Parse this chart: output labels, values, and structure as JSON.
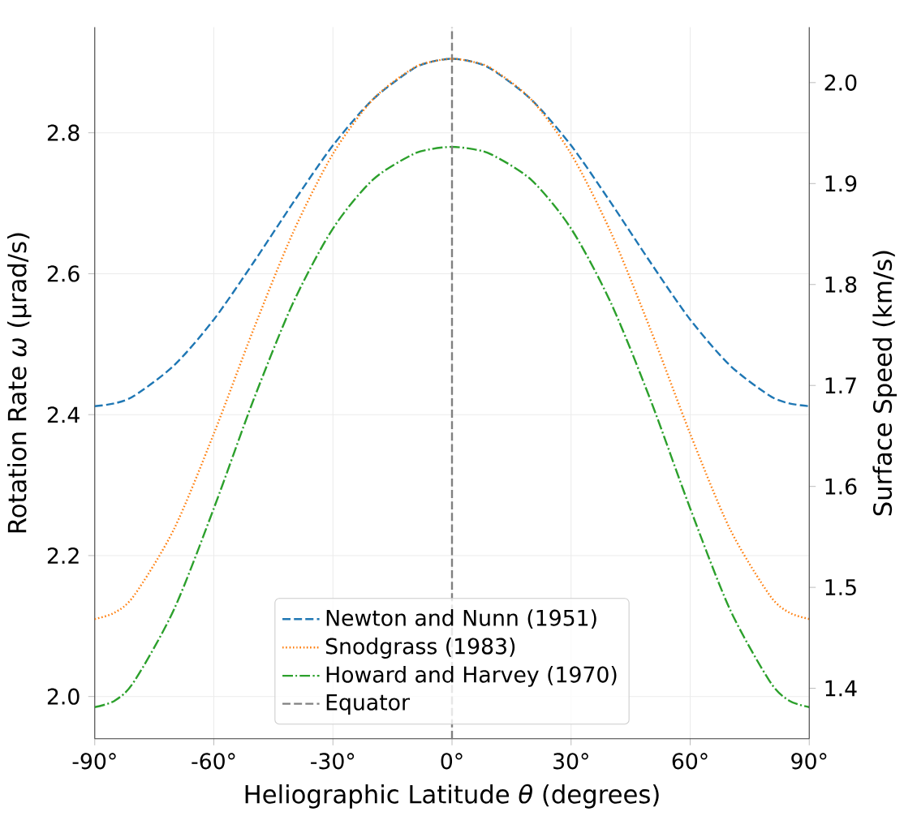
{
  "chart_data": {
    "type": "line",
    "xlabel": "Heliographic Latitude *θ* (degrees)",
    "ylabel": "Rotation Rate *ω* (μrad/s)",
    "y2label": "Surface Speed (km/s)",
    "x": [
      -90,
      -85,
      -80,
      -70,
      -60,
      -50,
      -40,
      -30,
      -20,
      -10,
      -5,
      0,
      5,
      10,
      20,
      30,
      40,
      50,
      60,
      70,
      80,
      85,
      90
    ],
    "series": [
      {
        "name": "Newton and Nunn (1951)",
        "color": "#1f77b4",
        "line_style": "dashed",
        "values": [
          2.412,
          2.416,
          2.427,
          2.47,
          2.535,
          2.616,
          2.701,
          2.782,
          2.847,
          2.89,
          2.901,
          2.905,
          2.901,
          2.89,
          2.847,
          2.782,
          2.701,
          2.616,
          2.535,
          2.47,
          2.427,
          2.416,
          2.412
        ]
      },
      {
        "name": "Snodgrass (1983)",
        "color": "#ff7f0e",
        "line_style": "dotted",
        "values": [
          2.11,
          2.119,
          2.144,
          2.238,
          2.373,
          2.521,
          2.659,
          2.77,
          2.847,
          2.891,
          2.901,
          2.905,
          2.901,
          2.891,
          2.847,
          2.77,
          2.659,
          2.521,
          2.373,
          2.238,
          2.144,
          2.119,
          2.11
        ]
      },
      {
        "name": "Howard and Harvey (1970)",
        "color": "#2ca02c",
        "line_style": "dashdot",
        "values": [
          1.985,
          1.994,
          2.022,
          2.124,
          2.267,
          2.421,
          2.559,
          2.664,
          2.733,
          2.769,
          2.777,
          2.78,
          2.777,
          2.769,
          2.733,
          2.664,
          2.559,
          2.421,
          2.267,
          2.124,
          2.022,
          1.994,
          1.985
        ]
      }
    ],
    "ref_lines": [
      {
        "axis": "x",
        "value": 0,
        "label": "Equator",
        "color": "#808080",
        "line_style": "dashed"
      }
    ],
    "xlim": [
      -90,
      90
    ],
    "ylim": [
      1.94,
      2.95
    ],
    "y2lim": [
      1.35,
      2.055
    ],
    "xticks": [
      {
        "value": -90,
        "label": "-90°"
      },
      {
        "value": -60,
        "label": "-60°"
      },
      {
        "value": -30,
        "label": "-30°"
      },
      {
        "value": 0,
        "label": "0°"
      },
      {
        "value": 30,
        "label": "30°"
      },
      {
        "value": 60,
        "label": "60°"
      },
      {
        "value": 90,
        "label": "90°"
      }
    ],
    "yticks": [
      {
        "value": 2,
        "label": "2.0"
      },
      2.2,
      2.4,
      2.6,
      2.8
    ],
    "y2ticks": [
      1.4,
      1.5,
      1.6,
      1.7,
      1.8,
      1.9,
      {
        "value": 2,
        "label": "2.0"
      }
    ],
    "grid": true,
    "legend": "bottom",
    "marker": "none"
  }
}
